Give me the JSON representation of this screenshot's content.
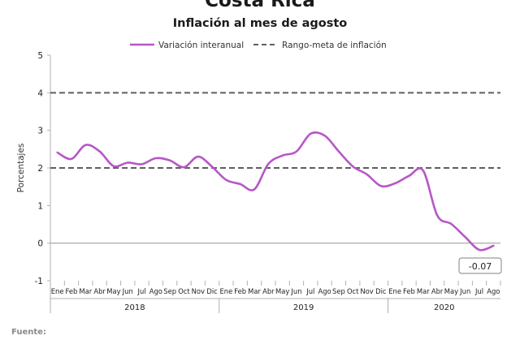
{
  "title": "Costa Rica",
  "subtitle": "Inflación al mes de agosto",
  "footer": "Fuente:",
  "colors": {
    "series": "#b757c7",
    "target": "#5f5f5f",
    "zero_line": "#a0a0a0",
    "axis": "#b0b0b0",
    "callout_border": "#808080"
  },
  "chart_data": {
    "type": "line",
    "ylabel": "Porcentajes",
    "ylim": [
      -1,
      5
    ],
    "yticks": [
      -1,
      0,
      1,
      2,
      3,
      4,
      5
    ],
    "grid": false,
    "legend_position": "top",
    "months": [
      "Ene",
      "Feb",
      "Mar",
      "Abr",
      "May",
      "Jun",
      "Jul",
      "Ago",
      "Sep",
      "Oct",
      "Nov",
      "Dic",
      "Ene",
      "Feb",
      "Mar",
      "Abr",
      "May",
      "Jun",
      "Jul",
      "Ago",
      "Sep",
      "Oct",
      "Nov",
      "Dic",
      "Ene",
      "Feb",
      "Mar",
      "Abr",
      "May",
      "Jun",
      "Jul",
      "Ago"
    ],
    "years": [
      {
        "label": "2018",
        "months": 12
      },
      {
        "label": "2019",
        "months": 12
      },
      {
        "label": "2020",
        "months": 8
      }
    ],
    "series": [
      {
        "name": "Variación interanual",
        "style": "solid",
        "values": [
          2.41,
          2.24,
          2.61,
          2.44,
          2.05,
          2.14,
          2.1,
          2.26,
          2.2,
          2.02,
          2.3,
          2.03,
          1.68,
          1.57,
          1.43,
          2.11,
          2.33,
          2.44,
          2.91,
          2.86,
          2.44,
          2.04,
          1.83,
          1.52,
          1.59,
          1.79,
          1.93,
          0.74,
          0.51,
          0.16,
          -0.18,
          -0.07
        ]
      },
      {
        "name": "Rango-meta de inflación",
        "style": "dashed",
        "upper": 4,
        "lower": 2
      }
    ],
    "annotations": [
      {
        "text": "-0.07",
        "month_index": 31,
        "value": -0.07
      }
    ]
  }
}
